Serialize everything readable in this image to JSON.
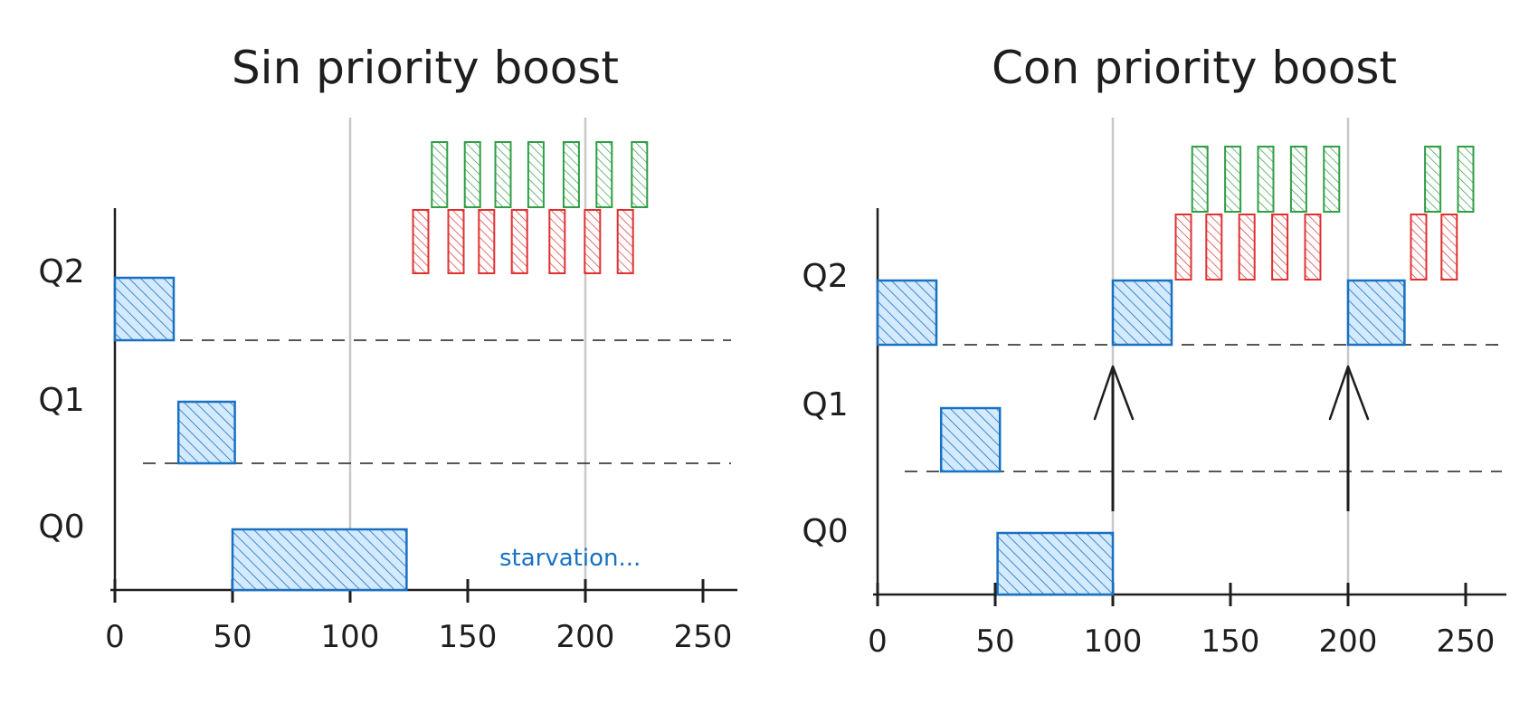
{
  "colors": {
    "ink": "#1e1e1e",
    "blue": "#1971c2",
    "blue_fill": "#a5d8ff",
    "red": "#e03131",
    "green": "#2f9e44",
    "guide": "#c8c8c8"
  },
  "panels": [
    {
      "title": "Sin priority boost",
      "queues": [
        "Q2",
        "Q1",
        "Q0"
      ],
      "ticks": [
        "0",
        "50",
        "100",
        "150",
        "200",
        "250"
      ],
      "tick_values": [
        0,
        50,
        100,
        150,
        200,
        250
      ],
      "guides": [
        100,
        200
      ],
      "jobs": [
        {
          "queue": "Q2",
          "start": 0,
          "end": 25
        },
        {
          "queue": "Q1",
          "start": 27,
          "end": 51
        },
        {
          "queue": "Q0",
          "start": 50,
          "end": 124
        }
      ],
      "red_slices": [
        130,
        145,
        158,
        172,
        188,
        203,
        217
      ],
      "green_slices": [
        138,
        152,
        165,
        179,
        194,
        208,
        223
      ],
      "boost_arrows": [],
      "note": "starvation..."
    },
    {
      "title": "Con priority boost",
      "queues": [
        "Q2",
        "Q1",
        "Q0"
      ],
      "ticks": [
        "0",
        "50",
        "100",
        "150",
        "200",
        "250"
      ],
      "tick_values": [
        0,
        50,
        100,
        150,
        200,
        250
      ],
      "guides": [
        100,
        200
      ],
      "jobs": [
        {
          "queue": "Q2",
          "start": 0,
          "end": 25
        },
        {
          "queue": "Q1",
          "start": 27,
          "end": 52
        },
        {
          "queue": "Q0",
          "start": 51,
          "end": 100
        },
        {
          "queue": "Q2",
          "start": 100,
          "end": 125
        },
        {
          "queue": "Q2",
          "start": 200,
          "end": 224
        }
      ],
      "red_slices": [
        130,
        143,
        157,
        171,
        185,
        230,
        243
      ],
      "green_slices": [
        137,
        151,
        165,
        179,
        193,
        236,
        250
      ],
      "boost_arrows": [
        100,
        200
      ],
      "note": ""
    }
  ]
}
